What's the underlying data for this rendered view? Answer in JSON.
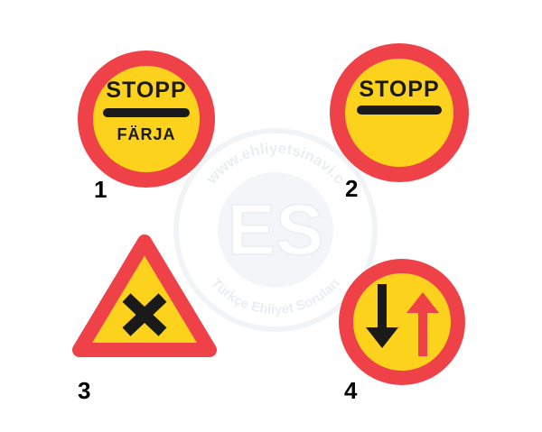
{
  "colors": {
    "border_red": "#ee4148",
    "fill_yellow": "#fcd21d",
    "ink_black": "#1a1a1a",
    "arrow_red": "#ee4148",
    "watermark": "#eef2f6"
  },
  "watermark": {
    "top_text": "www.ehliyetsinavi.c",
    "logo_text": "ES",
    "bottom_text": "Türkçe Ehliyet Soruları"
  },
  "signs": [
    {
      "number": "1",
      "type": "stop-ferry",
      "line1": "STOPP",
      "line2": "FÄRJA"
    },
    {
      "number": "2",
      "type": "stop",
      "line1": "STOPP"
    },
    {
      "number": "3",
      "type": "crossroads-warning",
      "symbol": "x-cross"
    },
    {
      "number": "4",
      "type": "priority-over-oncoming",
      "symbol": "down-black-up-red-arrows"
    }
  ]
}
